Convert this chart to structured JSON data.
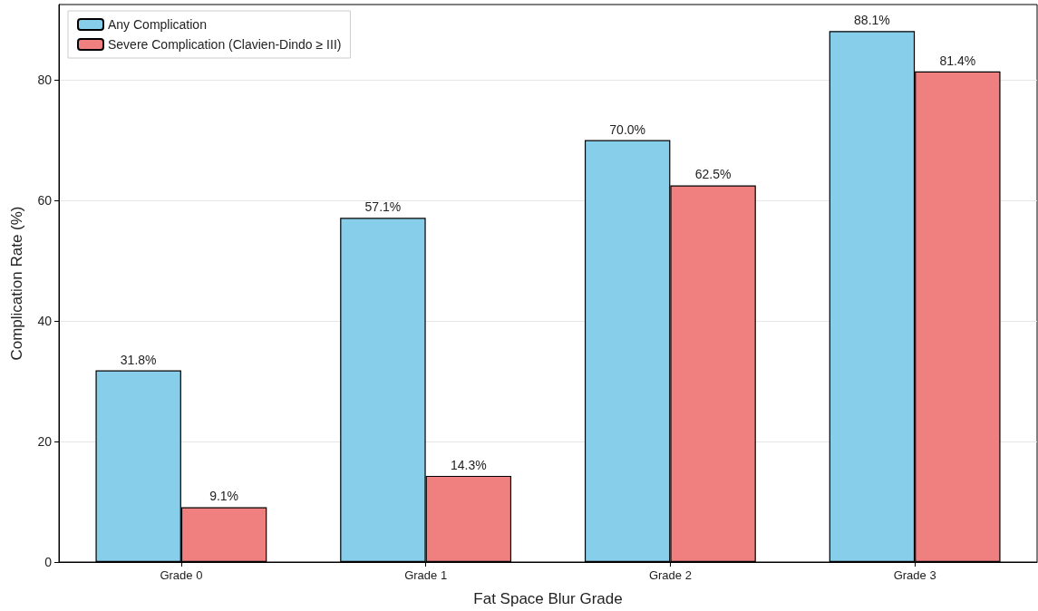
{
  "chart_data": {
    "type": "bar",
    "xlabel": "Fat Space Blur Grade",
    "ylabel": "Complication Rate (%)",
    "categories": [
      "Grade 0",
      "Grade 1",
      "Grade 2",
      "Grade 3"
    ],
    "series": [
      {
        "name": "Any Complication",
        "color": "#87ceeb",
        "values": [
          31.8,
          57.1,
          70.0,
          88.1
        ],
        "value_labels": [
          "31.8%",
          "57.1%",
          "70.0%",
          "88.1%"
        ]
      },
      {
        "name": "Severe Complication (Clavien-Dindo ≥ III)",
        "color": "#f08080",
        "values": [
          9.1,
          14.3,
          62.5,
          81.4
        ],
        "value_labels": [
          "9.1%",
          "14.3%",
          "62.5%",
          "81.4%"
        ]
      }
    ],
    "ylim": [
      0,
      92.5
    ],
    "yticks": [
      0,
      20,
      40,
      60,
      80
    ],
    "grid": "y",
    "legend": "top left"
  }
}
